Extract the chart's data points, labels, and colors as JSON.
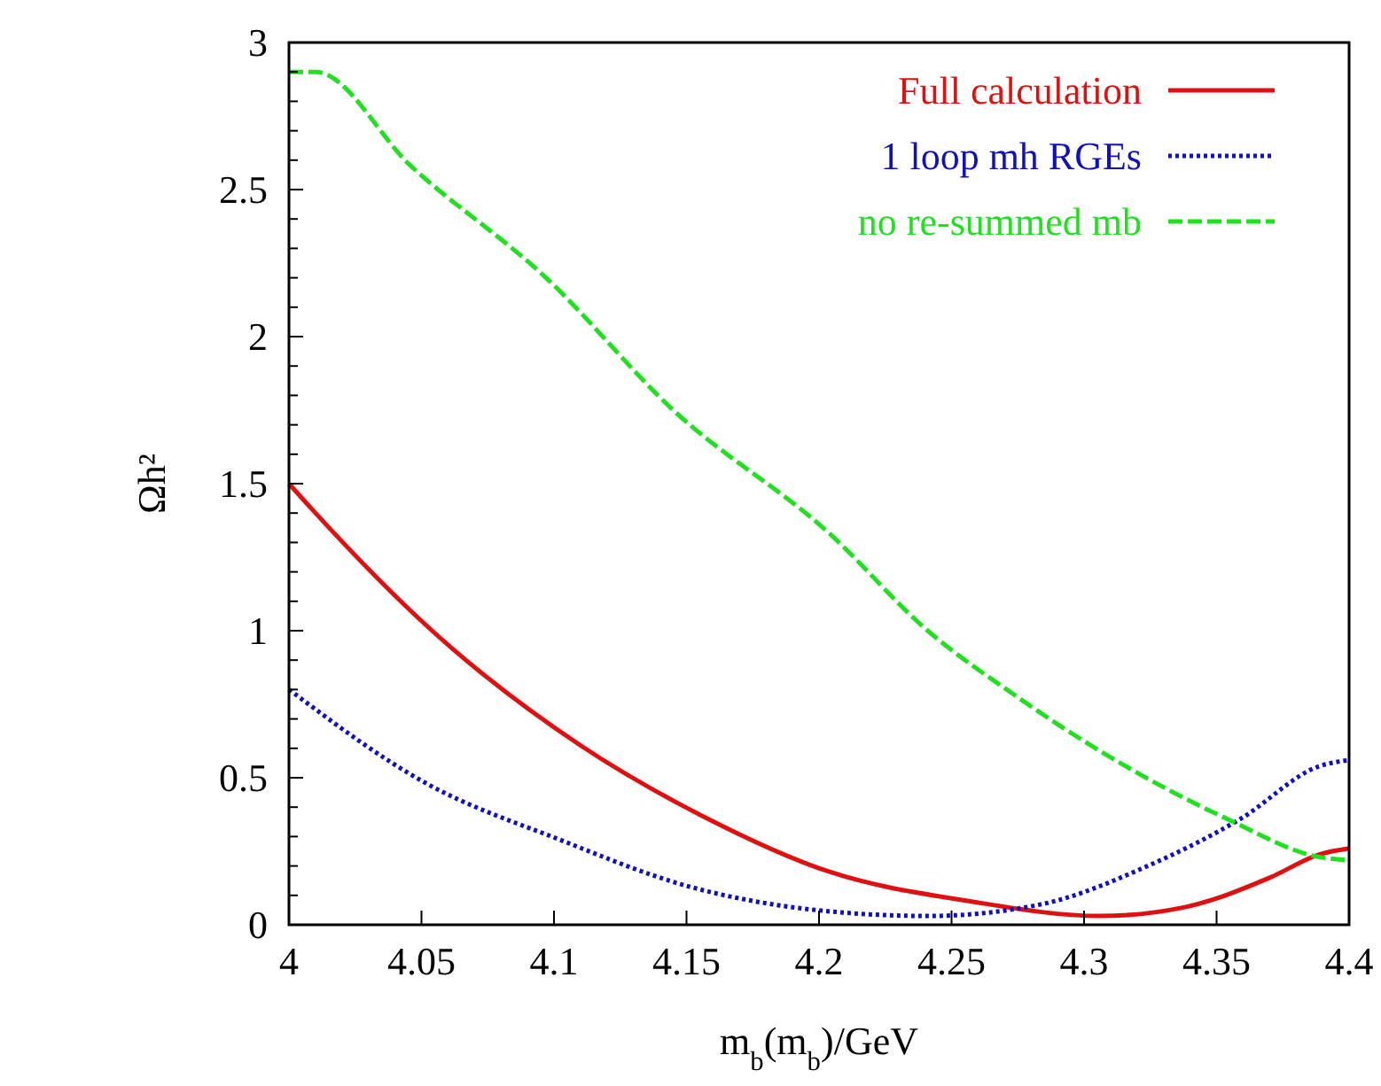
{
  "chart_data": {
    "type": "line",
    "xlabel": "m$_{b}$(m$_{b}$)/GeV",
    "ylabel": "Ωh²",
    "xlim": [
      4,
      4.4
    ],
    "xticks": [
      4,
      4.05,
      4.1,
      4.15,
      4.2,
      4.25,
      4.3,
      4.35,
      4.4
    ],
    "ylim": [
      0,
      3
    ],
    "yticks": [
      0,
      {
        "value": 0.1,
        "label": null
      },
      {
        "value": 0.2,
        "label": null
      },
      {
        "value": 0.3,
        "label": null
      },
      {
        "value": 0.4,
        "label": null
      },
      0.5,
      {
        "value": 0.6,
        "label": null
      },
      {
        "value": 0.7,
        "label": null
      },
      {
        "value": 0.8,
        "label": null
      },
      {
        "value": 0.9,
        "label": null
      },
      1,
      {
        "value": 1.1,
        "label": null
      },
      {
        "value": 1.2,
        "label": null
      },
      {
        "value": 1.3,
        "label": null
      },
      {
        "value": 1.4,
        "label": null
      },
      1.5,
      {
        "value": 1.6,
        "label": null
      },
      {
        "value": 1.7,
        "label": null
      },
      {
        "value": 1.8,
        "label": null
      },
      {
        "value": 1.9,
        "label": null
      },
      2,
      {
        "value": 2.1,
        "label": null
      },
      {
        "value": 2.2,
        "label": null
      },
      {
        "value": 2.3,
        "label": null
      },
      {
        "value": 2.4,
        "label": null
      },
      2.5,
      {
        "value": 2.6,
        "label": null
      },
      {
        "value": 2.7,
        "label": null
      },
      {
        "value": 2.8,
        "label": null
      },
      {
        "value": 2.9,
        "label": null
      },
      3
    ],
    "grid": false,
    "legend": "top right",
    "series": [
      {
        "name": "Full calculation",
        "color": "#e01010",
        "line_style": "solid",
        "x": [
          4,
          4.009,
          4.054,
          4.11,
          4.156,
          4.204,
          4.257,
          4.306,
          4.338,
          4.37,
          4.389,
          4.4
        ],
        "values": [
          1.5,
          1.41,
          1.0,
          0.61,
          0.37,
          0.18,
          0.08,
          0.03,
          0.06,
          0.16,
          0.24,
          0.26
        ]
      },
      {
        "name": "1 loop mh RGEs",
        "color": "#1010c0",
        "line_style": "dotted",
        "x": [
          4,
          4.052,
          4.102,
          4.151,
          4.199,
          4.241,
          4.284,
          4.324,
          4.359,
          4.389,
          4.4
        ],
        "values": [
          0.8,
          0.48,
          0.29,
          0.13,
          0.05,
          0.03,
          0.07,
          0.2,
          0.36,
          0.54,
          0.56
        ]
      },
      {
        "name": "no re-summed mb",
        "color": "#20e020",
        "line_style": "dashed",
        "x": [
          4,
          4.01,
          4.046,
          4.097,
          4.145,
          4.204,
          4.241,
          4.274,
          4.308,
          4.354,
          4.389,
          4.4
        ],
        "values": [
          2.9,
          2.9,
          2.58,
          2.2,
          1.75,
          1.33,
          1.0,
          0.78,
          0.58,
          0.36,
          0.23,
          0.22
        ]
      }
    ]
  }
}
